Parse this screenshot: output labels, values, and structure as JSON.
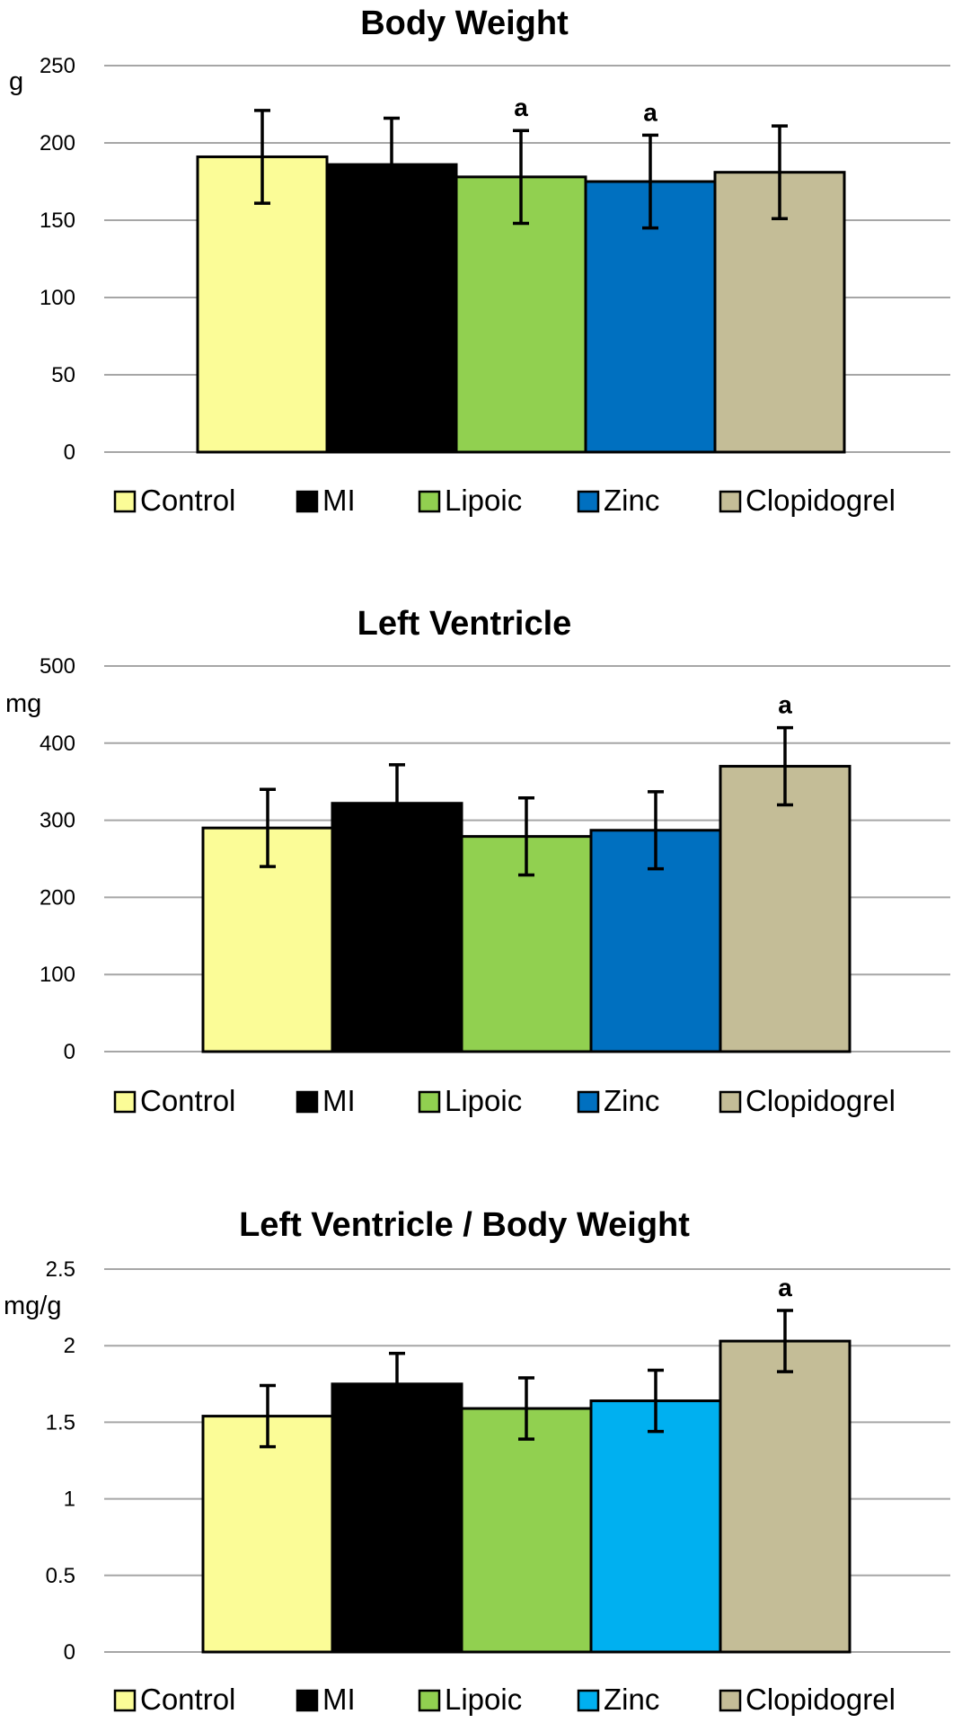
{
  "chart_data": [
    {
      "type": "bar",
      "title": "Body Weight",
      "ylabel": "g",
      "ylim": [
        0,
        250
      ],
      "yticks": [
        0,
        50,
        100,
        150,
        200,
        250
      ],
      "categories": [
        "Control",
        "MI",
        "Lipoic",
        "Zinc",
        "Clopidogrel"
      ],
      "values": [
        191,
        186,
        178,
        175,
        181
      ],
      "errors": [
        30,
        30,
        30,
        30,
        30
      ],
      "significance": [
        "",
        "",
        "a",
        "a",
        ""
      ],
      "colors": [
        "#fbfc97",
        "#000000",
        "#91d050",
        "#0070c0",
        "#c4bd97"
      ],
      "legend": [
        "Control",
        "MI",
        "Lipoic",
        "Zinc",
        "Clopidogrel"
      ]
    },
    {
      "type": "bar",
      "title": "Left Ventricle",
      "ylabel": "mg",
      "ylim": [
        0,
        500
      ],
      "yticks": [
        0,
        100,
        200,
        300,
        400,
        500
      ],
      "categories": [
        "Control",
        "MI",
        "Lipoic",
        "Zinc",
        "Clopidogrel"
      ],
      "values": [
        290,
        322,
        279,
        287,
        370
      ],
      "errors": [
        50,
        50,
        50,
        50,
        50
      ],
      "significance": [
        "",
        "",
        "",
        "",
        "a"
      ],
      "colors": [
        "#fbfc97",
        "#000000",
        "#91d050",
        "#0070c0",
        "#c4bd97"
      ],
      "legend": [
        "Control",
        "MI",
        "Lipoic",
        "Zinc",
        "Clopidogrel"
      ]
    },
    {
      "type": "bar",
      "title": "Left Ventricle / Body Weight",
      "ylabel": "mg/g",
      "ylim": [
        0,
        2.5
      ],
      "yticks": [
        "0",
        "0.5",
        "1",
        "1.5",
        "2",
        "2.5"
      ],
      "categories": [
        "Control",
        "MI",
        "Lipoic",
        "Zinc",
        "Clopidogrel"
      ],
      "values": [
        1.54,
        1.75,
        1.59,
        1.64,
        2.03
      ],
      "errors": [
        0.2,
        0.2,
        0.2,
        0.2,
        0.2
      ],
      "significance": [
        "",
        "",
        "",
        "",
        "a"
      ],
      "colors": [
        "#fbfc97",
        "#000000",
        "#91d050",
        "#00b0f0",
        "#c4bd97"
      ],
      "legend": [
        "Control",
        "MI",
        "Lipoic",
        "Zinc",
        "Clopidogrel"
      ]
    }
  ]
}
